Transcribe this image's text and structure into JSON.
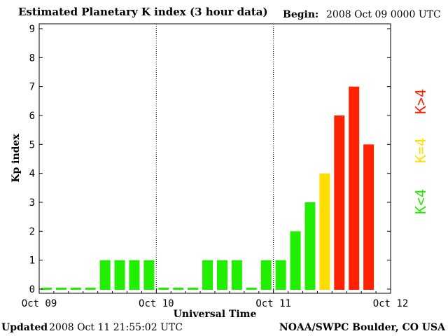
{
  "header": {
    "title": "Estimated Planetary K index (3 hour data)",
    "begin_label": "Begin:",
    "begin_value": "2008 Oct 09 0000 UTC"
  },
  "footer": {
    "updated_label": "Updated",
    "updated_value": "2008 Oct 11 21:55:02 UTC",
    "source": "NOAA/SWPC Boulder, CO USA"
  },
  "chart_data": {
    "type": "bar",
    "xlabel": "Universal Time",
    "ylabel": "Kp index",
    "ylim": [
      0,
      9
    ],
    "yticks": [
      0,
      1,
      2,
      3,
      4,
      5,
      6,
      7,
      8,
      9
    ],
    "xticks": [
      "Oct 09",
      "Oct 10",
      "Oct 11",
      "Oct 12"
    ],
    "x_range_hours": [
      0,
      72
    ],
    "day_separators": [
      24,
      48
    ],
    "bar_interval_hours": 3,
    "values": [
      0,
      0,
      0,
      0,
      1,
      1,
      1,
      1,
      0,
      0,
      0,
      1,
      1,
      1,
      0,
      1,
      1,
      2,
      3,
      4,
      6,
      7,
      5
    ],
    "colors": {
      "low": "#22ee00",
      "storm_threshold": "#ffdd00",
      "storm": "#ff2200"
    },
    "legend": [
      {
        "label": "K<4",
        "color": "#22ee00"
      },
      {
        "label": "K=4",
        "color": "#ffdd00"
      },
      {
        "label": "K>4",
        "color": "#ff2200"
      }
    ],
    "grid": false,
    "legend_position": "right"
  }
}
